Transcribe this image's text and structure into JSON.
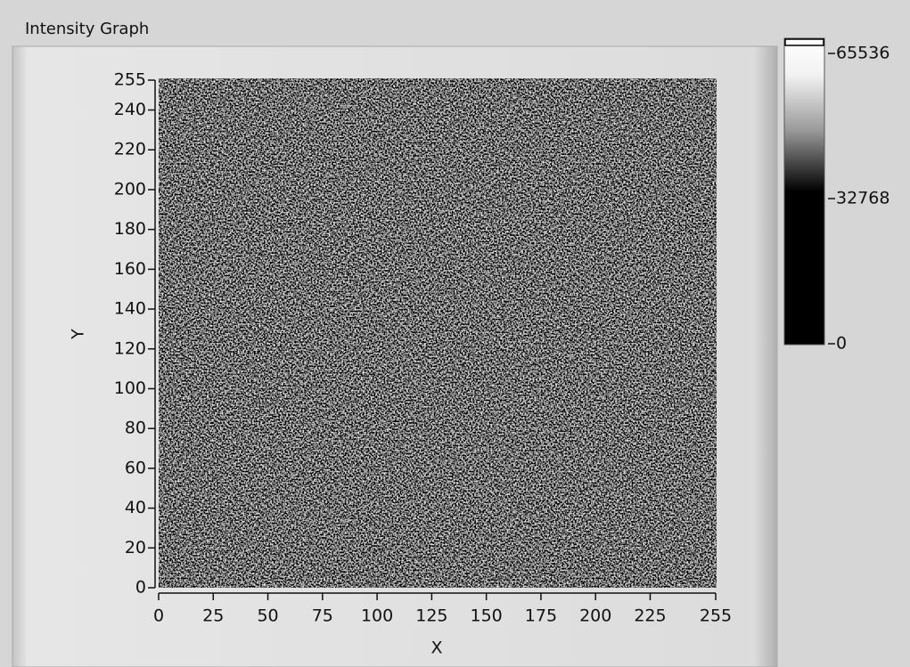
{
  "label": "Intensity Graph",
  "chart_data": {
    "type": "heatmap",
    "x_label": "X",
    "y_label": "Y",
    "xlim": [
      0,
      255
    ],
    "ylim": [
      0,
      255
    ],
    "xticks": [
      0,
      25,
      50,
      75,
      100,
      125,
      150,
      175,
      200,
      225,
      255
    ],
    "yticks": [
      0,
      20,
      40,
      60,
      80,
      100,
      120,
      140,
      160,
      180,
      200,
      220,
      240,
      255
    ],
    "colorbar": {
      "lim": [
        0,
        65536
      ],
      "ticks": [
        0,
        32768,
        65536
      ]
    }
  }
}
